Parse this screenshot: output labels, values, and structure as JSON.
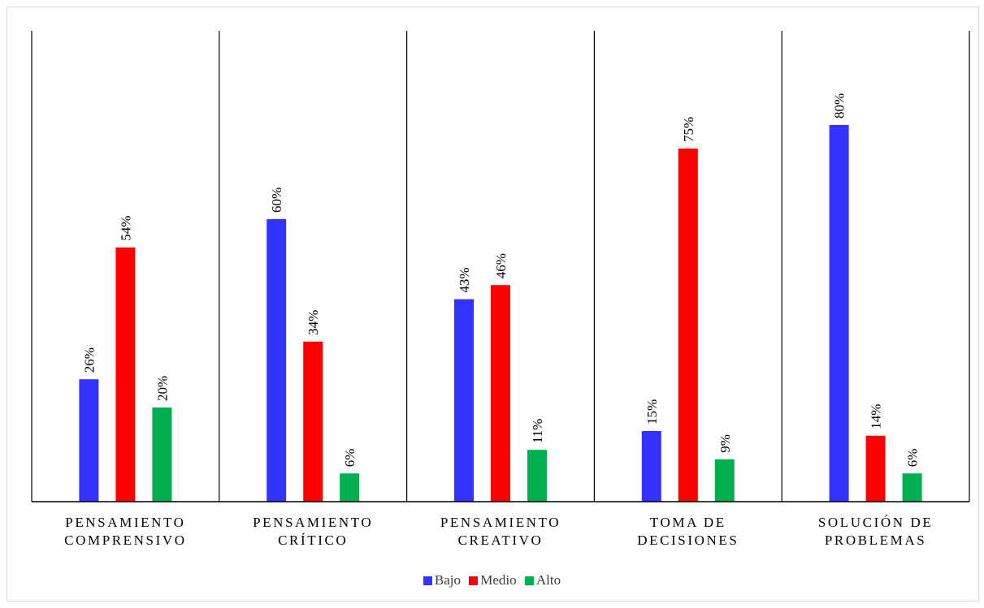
{
  "chart_data": {
    "type": "bar",
    "categories": [
      [
        "PENSAMIENTO",
        "COMPRENSIVO"
      ],
      [
        "PENSAMIENTO",
        "CRÍTICO"
      ],
      [
        "PENSAMIENTO",
        "CREATIVO"
      ],
      [
        "TOMA DE",
        "DECISIONES"
      ],
      [
        "SOLUCIÓN DE",
        "PROBLEMAS"
      ]
    ],
    "series": [
      {
        "name": "Bajo",
        "color": "#3333ff",
        "values": [
          26,
          60,
          43,
          15,
          80
        ],
        "labels": [
          "26%",
          "60%",
          "43%",
          "15%",
          "80%"
        ]
      },
      {
        "name": "Medio",
        "color": "#ff0000",
        "values": [
          54,
          34,
          46,
          75,
          14
        ],
        "labels": [
          "54%",
          "34%",
          "46%",
          "75%",
          "14%"
        ]
      },
      {
        "name": "Alto",
        "color": "#00b050",
        "values": [
          20,
          6,
          11,
          9,
          6
        ],
        "labels": [
          "20%",
          "6%",
          "11%",
          "9%",
          "6%"
        ]
      }
    ],
    "ylim": [
      0,
      100
    ],
    "grid": false,
    "legend_position": "bottom",
    "xlabel": "",
    "ylabel": ""
  }
}
